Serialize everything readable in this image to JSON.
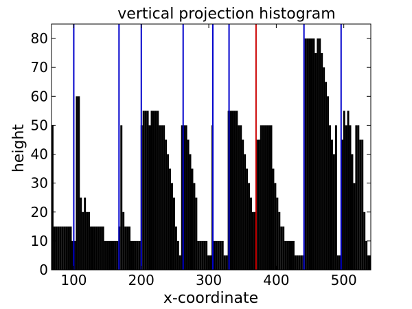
{
  "chart_data": {
    "type": "bar",
    "title": "vertical projection histogram",
    "xlabel": "x-coordinate",
    "ylabel": "height",
    "xlim": [
      67,
      540
    ],
    "ylim": [
      0,
      85
    ],
    "x_ticks": [
      100,
      200,
      300,
      400,
      500
    ],
    "y_ticks": [
      0,
      10,
      20,
      30,
      40,
      50,
      60,
      70,
      80
    ],
    "grid": false,
    "bar_color": "#000000",
    "series": [
      {
        "values": [
          [
            67,
            50
          ],
          [
            70,
            15
          ],
          [
            73,
            15
          ],
          [
            76,
            15
          ],
          [
            79,
            15
          ],
          [
            82,
            15
          ],
          [
            85,
            15
          ],
          [
            88,
            15
          ],
          [
            91,
            15
          ],
          [
            94,
            15
          ],
          [
            97,
            10
          ],
          [
            100,
            10
          ],
          [
            103,
            60
          ],
          [
            106,
            60
          ],
          [
            109,
            25
          ],
          [
            112,
            20
          ],
          [
            115,
            25
          ],
          [
            118,
            20
          ],
          [
            121,
            20
          ],
          [
            124,
            15
          ],
          [
            127,
            15
          ],
          [
            130,
            15
          ],
          [
            133,
            15
          ],
          [
            136,
            15
          ],
          [
            139,
            15
          ],
          [
            142,
            15
          ],
          [
            145,
            10
          ],
          [
            148,
            10
          ],
          [
            151,
            10
          ],
          [
            154,
            10
          ],
          [
            157,
            10
          ],
          [
            160,
            10
          ],
          [
            163,
            10
          ],
          [
            166,
            15
          ],
          [
            169,
            50
          ],
          [
            172,
            20
          ],
          [
            175,
            15
          ],
          [
            178,
            15
          ],
          [
            181,
            15
          ],
          [
            184,
            10
          ],
          [
            187,
            10
          ],
          [
            190,
            10
          ],
          [
            193,
            10
          ],
          [
            196,
            10
          ],
          [
            199,
            50
          ],
          [
            202,
            55
          ],
          [
            205,
            55
          ],
          [
            208,
            55
          ],
          [
            211,
            50
          ],
          [
            214,
            55
          ],
          [
            217,
            55
          ],
          [
            220,
            55
          ],
          [
            223,
            55
          ],
          [
            226,
            50
          ],
          [
            229,
            50
          ],
          [
            232,
            50
          ],
          [
            235,
            45
          ],
          [
            238,
            40
          ],
          [
            241,
            35
          ],
          [
            244,
            30
          ],
          [
            247,
            25
          ],
          [
            250,
            15
          ],
          [
            253,
            10
          ],
          [
            256,
            5
          ],
          [
            259,
            50
          ],
          [
            262,
            50
          ],
          [
            265,
            50
          ],
          [
            268,
            45
          ],
          [
            271,
            40
          ],
          [
            274,
            35
          ],
          [
            277,
            30
          ],
          [
            280,
            25
          ],
          [
            283,
            10
          ],
          [
            286,
            10
          ],
          [
            289,
            10
          ],
          [
            292,
            10
          ],
          [
            295,
            10
          ],
          [
            298,
            5
          ],
          [
            301,
            5
          ],
          [
            304,
            50
          ],
          [
            307,
            10
          ],
          [
            310,
            10
          ],
          [
            313,
            10
          ],
          [
            316,
            10
          ],
          [
            319,
            10
          ],
          [
            322,
            5
          ],
          [
            325,
            5
          ],
          [
            328,
            55
          ],
          [
            331,
            55
          ],
          [
            334,
            55
          ],
          [
            337,
            55
          ],
          [
            340,
            55
          ],
          [
            343,
            50
          ],
          [
            346,
            50
          ],
          [
            349,
            45
          ],
          [
            352,
            40
          ],
          [
            355,
            35
          ],
          [
            358,
            30
          ],
          [
            361,
            25
          ],
          [
            364,
            20
          ],
          [
            367,
            20
          ],
          [
            370,
            45
          ],
          [
            373,
            45
          ],
          [
            376,
            50
          ],
          [
            379,
            50
          ],
          [
            382,
            50
          ],
          [
            385,
            50
          ],
          [
            388,
            50
          ],
          [
            391,
            50
          ],
          [
            394,
            35
          ],
          [
            397,
            30
          ],
          [
            400,
            25
          ],
          [
            403,
            20
          ],
          [
            406,
            15
          ],
          [
            409,
            15
          ],
          [
            412,
            10
          ],
          [
            415,
            10
          ],
          [
            418,
            10
          ],
          [
            421,
            10
          ],
          [
            424,
            10
          ],
          [
            427,
            5
          ],
          [
            430,
            5
          ],
          [
            433,
            5
          ],
          [
            436,
            5
          ],
          [
            439,
            5
          ],
          [
            442,
            80
          ],
          [
            445,
            80
          ],
          [
            448,
            80
          ],
          [
            451,
            80
          ],
          [
            454,
            80
          ],
          [
            457,
            75
          ],
          [
            460,
            80
          ],
          [
            463,
            80
          ],
          [
            466,
            75
          ],
          [
            469,
            70
          ],
          [
            472,
            65
          ],
          [
            475,
            60
          ],
          [
            478,
            50
          ],
          [
            481,
            45
          ],
          [
            484,
            40
          ],
          [
            487,
            50
          ],
          [
            490,
            5
          ],
          [
            493,
            5
          ],
          [
            496,
            45
          ],
          [
            499,
            55
          ],
          [
            502,
            50
          ],
          [
            505,
            55
          ],
          [
            508,
            50
          ],
          [
            511,
            40
          ],
          [
            514,
            30
          ],
          [
            517,
            50
          ],
          [
            520,
            50
          ],
          [
            523,
            45
          ],
          [
            526,
            45
          ],
          [
            529,
            20
          ],
          [
            532,
            10
          ],
          [
            535,
            5
          ]
        ]
      }
    ],
    "vertical_lines": [
      {
        "x": 100,
        "color": "#0000cc"
      },
      {
        "x": 167,
        "color": "#0000cc"
      },
      {
        "x": 200,
        "color": "#0000cc"
      },
      {
        "x": 262,
        "color": "#0000cc"
      },
      {
        "x": 306,
        "color": "#0000cc"
      },
      {
        "x": 330,
        "color": "#0000cc"
      },
      {
        "x": 370,
        "color": "#cc0000"
      },
      {
        "x": 441,
        "color": "#0000cc"
      },
      {
        "x": 496,
        "color": "#0000cc"
      }
    ]
  }
}
